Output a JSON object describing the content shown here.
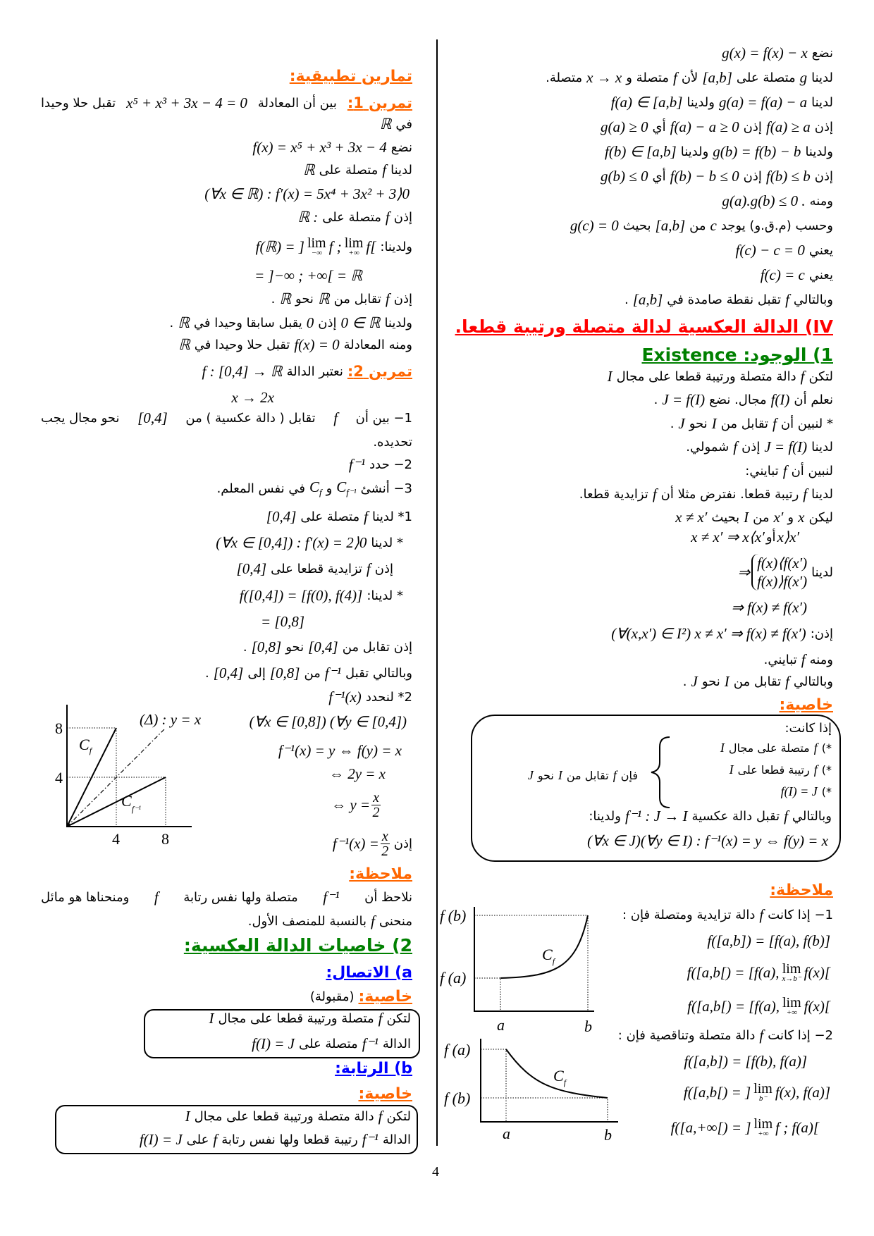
{
  "colors": {
    "orange": "#ff6600",
    "red": "#ff0000",
    "green": "#008000",
    "blue": "#0000ff"
  },
  "page_number": "4",
  "right_col": [
    [
      {
        "ar": "نضع"
      },
      {
        "m": "g(x) = f(x) − x"
      }
    ],
    [
      {
        "ar": "لدينا"
      },
      {
        "m": "g"
      },
      {
        "ar": "متصلة على"
      },
      {
        "m": "[a,b]"
      },
      {
        "ar": "لأن"
      },
      {
        "m": "f"
      },
      {
        "ar": "متصلة و"
      },
      {
        "m": "x → x"
      },
      {
        "ar": "متصلة."
      }
    ],
    [
      {
        "ar": "لدينا"
      },
      {
        "m": "g(a) = f(a) − a"
      },
      {
        "ar": "ولدينا"
      },
      {
        "m": "f(a) ∈ [a,b]"
      }
    ],
    [
      {
        "ar": "إذن"
      },
      {
        "m": "f(a) ≥ a"
      },
      {
        "ar": "إذن"
      },
      {
        "m": "f(a) − a ≥ 0"
      },
      {
        "ar": "أي"
      },
      {
        "m": "g(a) ≥ 0"
      }
    ],
    [
      {
        "ar": "ولدينا"
      },
      {
        "m": "g(b) = f(b) − b"
      },
      {
        "ar": "ولدينا"
      },
      {
        "m": "f(b) ∈ [a,b]"
      }
    ],
    [
      {
        "ar": "إذن"
      },
      {
        "m": "f(b) ≤ b"
      },
      {
        "ar": "إذن"
      },
      {
        "m": "f(b) − b ≤ 0"
      },
      {
        "ar": "أي"
      },
      {
        "m": "g(b) ≤ 0"
      }
    ],
    [
      {
        "ar": "ومنه"
      },
      {
        "m": "g(a).g(b) ≤ 0 ."
      }
    ],
    [
      {
        "ar": "وحسب (م.ق.و) يوجد"
      },
      {
        "m": "c"
      },
      {
        "ar": "من"
      },
      {
        "m": "[a,b]"
      },
      {
        "ar": "بحيث"
      },
      {
        "m": "g(c) = 0"
      }
    ],
    [
      {
        "ar": "يعني"
      },
      {
        "m": "f(c) − c = 0"
      }
    ],
    [
      {
        "ar": "يعني"
      },
      {
        "m": "f(c) = c"
      }
    ],
    [
      {
        "ar": "وبالتالي"
      },
      {
        "m": "f"
      },
      {
        "ar": "تقبل نقطة صامدة في"
      },
      {
        "m": "[a,b]"
      },
      {
        "ar": "."
      }
    ],
    [
      {
        "h": "IV) الدالة العكسية لدالة متصلة ورتيبة قطعا.",
        "color": "red"
      }
    ],
    [
      {
        "h": "1) الوجود: Existence",
        "color": "green"
      }
    ],
    [
      {
        "ar": "لتكن"
      },
      {
        "m": "f"
      },
      {
        "ar": "دالة متصلة ورتيبة قطعا على مجال"
      },
      {
        "m": "I"
      }
    ],
    [
      {
        "ar": "نعلم أن"
      },
      {
        "m": "f(I)"
      },
      {
        "ar": "مجال. نضع"
      },
      {
        "m": "J = f(I)"
      },
      {
        "ar": "."
      }
    ],
    [
      {
        "ar": "* لنبين أن"
      },
      {
        "m": "f"
      },
      {
        "ar": "تقابل من"
      },
      {
        "m": "I"
      },
      {
        "ar": "نحو"
      },
      {
        "m": "J"
      },
      {
        "ar": "."
      }
    ],
    [
      {
        "ar": "لدينا"
      },
      {
        "m": "J = f(I)"
      },
      {
        "ar": "إذن"
      },
      {
        "m": "f"
      },
      {
        "ar": "شمولي."
      }
    ],
    [
      {
        "ar": "لنبين أن"
      },
      {
        "m": "f"
      },
      {
        "ar": "تبايني:"
      }
    ],
    [
      {
        "ar": "لدينا"
      },
      {
        "m": "f"
      },
      {
        "ar": "رتيبة قطعا. نفترض مثلا أن"
      },
      {
        "m": "f"
      },
      {
        "ar": "تزايدية قطعا."
      }
    ],
    [
      {
        "ar": "ليكن"
      },
      {
        "m": "x"
      },
      {
        "ar": "و"
      },
      {
        "m": "x′"
      },
      {
        "ar": "من"
      },
      {
        "m": "I"
      },
      {
        "ar": "بحيث"
      },
      {
        "m": "x ≠ x′"
      }
    ],
    [
      {
        "grp": [
          {
            "m": "x ≠ x′ ⇒ x⟨x′"
          },
          {
            "ar": " أو "
          },
          {
            "m": "x⟩x′"
          }
        ]
      }
    ],
    [
      {
        "ar": "لدينا"
      },
      {
        "grp": [
          {
            "m": "⇒"
          },
          {
            "sys": [
              "f(x)⟨f(x′)",
              "f(x)⟩f(x′)"
            ]
          }
        ]
      }
    ],
    [
      {
        "m": "⇒ f(x) ≠ f(x′)"
      }
    ],
    [
      {
        "ar": "إذن:"
      },
      {
        "m": "(∀(x,x′) ∈ I²) x ≠ x′ ⇒ f(x) ≠ f(x′)"
      }
    ],
    [
      {
        "ar": "ومنه"
      },
      {
        "m": "f"
      },
      {
        "ar": "تبايني."
      }
    ],
    [
      {
        "ar": "وبالتالي"
      },
      {
        "m": "f"
      },
      {
        "ar": "تقابل من"
      },
      {
        "m": "I"
      },
      {
        "ar": "نحو"
      },
      {
        "m": "J"
      },
      {
        "ar": "."
      }
    ],
    [
      {
        "h": "خاصية:",
        "color": "orange"
      }
    ],
    [
      {
        "h": "ملاحظة:",
        "color": "orange"
      }
    ],
    [
      {
        "ar": "1− إذا كانت"
      },
      {
        "m": "f"
      },
      {
        "ar": "دالة تزايدية ومتصلة فإن :"
      }
    ],
    [
      {
        "m": "f([a,b]) = [f(a), f(b)]"
      }
    ],
    [
      {
        "grp": [
          {
            "m": "f([a,b[) = [f(a),"
          },
          {
            "lim": "lim",
            "sub": "x→b⁻"
          },
          {
            "m": "f(x)["
          }
        ]
      }
    ],
    [
      {
        "grp": [
          {
            "m": "f([a,b[) = [f(a),"
          },
          {
            "lim": "lim",
            "sub": "+∞"
          },
          {
            "m": "f(x)["
          }
        ]
      }
    ],
    [
      {
        "ar": "2− إذا كانت"
      },
      {
        "m": "f"
      },
      {
        "ar": "دالة متصلة وتناقصية فإن :"
      }
    ],
    [
      {
        "m": "f([a,b]) = [f(b), f(a)]"
      }
    ],
    [
      {
        "grp": [
          {
            "m": "f([a,b[) = ]"
          },
          {
            "lim": "lim",
            "sub": "b⁻"
          },
          {
            "m": "f(x), f(a)]"
          }
        ]
      }
    ],
    [
      {
        "grp": [
          {
            "m": "f([a,+∞[) = ]"
          },
          {
            "lim": "lim",
            "sub": "+∞"
          },
          {
            "m": "f ; f(a)["
          }
        ]
      }
    ]
  ],
  "right_box": [
    [
      {
        "ar": "إذا كانت:"
      }
    ],
    [
      {
        "ar": "*)"
      },
      {
        "m": "f"
      },
      {
        "ar": "متصلة على مجال"
      },
      {
        "m": "I"
      }
    ],
    [
      {
        "ar": "*)"
      },
      {
        "m": "f"
      },
      {
        "ar": "رتيبة قطعا على"
      },
      {
        "m": "I"
      }
    ],
    [
      {
        "ar": "*)"
      },
      {
        "m": "f(I) = J"
      }
    ],
    [
      {
        "ar": "فإن"
      },
      {
        "m": "f"
      },
      {
        "ar": "تقابل من"
      },
      {
        "m": "I"
      },
      {
        "ar": "نحو"
      },
      {
        "m": "J"
      }
    ],
    [
      {
        "ar": "وبالتالي"
      },
      {
        "m": "f"
      },
      {
        "ar": "تقبل دالة عكسية"
      },
      {
        "m": "f⁻¹ : J → I"
      },
      {
        "ar": "ولدينا:"
      }
    ],
    [
      {
        "m": "(∀x ∈ J)(∀y ∈ I) : f⁻¹(x) = y ⇔ f(y) = x"
      }
    ]
  ],
  "left_col": [
    [
      {
        "h": "تمارين تطبيقية:",
        "color": "orange"
      }
    ],
    [
      {
        "lab": "تمرين 1:"
      },
      {
        "ar": "بين أن المعادلة"
      },
      {
        "m": "x⁵ + x³ + 3x − 4 = 0"
      },
      {
        "ar": "تقبل حلا وحيدا"
      }
    ],
    [
      {
        "ar": "في"
      },
      {
        "m": "ℝ"
      }
    ],
    [
      {
        "ar": "نضع"
      },
      {
        "m": "f(x) = x⁵ + x³ + 3x − 4"
      }
    ],
    [
      {
        "ar": "لدينا"
      },
      {
        "m": "f"
      },
      {
        "ar": "متصلة على"
      },
      {
        "m": "ℝ"
      }
    ],
    [
      {
        "m": "(∀x ∈ ℝ) : f′(x) = 5x⁴ + 3x² + 3⟩0"
      }
    ],
    [
      {
        "ar": "إذن"
      },
      {
        "m": "f"
      },
      {
        "ar": "متصلة على"
      },
      {
        "m": "ℝ :"
      }
    ],
    [
      {
        "ar": "ولدينا:"
      },
      {
        "grp": [
          {
            "m": "f(ℝ) = ]"
          },
          {
            "lim": "lim",
            "sub": "−∞"
          },
          {
            "m": "f ;"
          },
          {
            "lim": "lim",
            "sub": "+∞"
          },
          {
            "m": "f["
          }
        ]
      }
    ],
    [
      {
        "m": "= ]−∞ ; +∞[ = ℝ"
      }
    ],
    [
      {
        "ar": "إذن"
      },
      {
        "m": "f"
      },
      {
        "ar": "تقابل من"
      },
      {
        "m": "ℝ"
      },
      {
        "ar": "نحو"
      },
      {
        "m": "ℝ"
      },
      {
        "ar": "."
      }
    ],
    [
      {
        "ar": "ولدينا"
      },
      {
        "m": "0 ∈ ℝ"
      },
      {
        "ar": "إذن"
      },
      {
        "m": "0"
      },
      {
        "ar": "يقبل سابقا وحيدا في"
      },
      {
        "m": "ℝ"
      },
      {
        "ar": "."
      }
    ],
    [
      {
        "ar": "ومنه المعادلة"
      },
      {
        "m": "f(x) = 0"
      },
      {
        "ar": "تقبل حلا وحيدا في"
      },
      {
        "m": "ℝ"
      }
    ],
    [
      {
        "lab": "تمرين 2:"
      },
      {
        "ar": "نعتبر الدالة"
      },
      {
        "m": "f : [0,4] → ℝ"
      }
    ],
    [
      {
        "m": "x → 2x"
      }
    ],
    [
      {
        "ar": "1− بين أن"
      },
      {
        "m": "f"
      },
      {
        "ar": "تقابل ( دالة عكسية ) من"
      },
      {
        "m": "[0,4]"
      },
      {
        "ar": "نحو مجال يجب"
      }
    ],
    [
      {
        "ar": "تحديده."
      }
    ],
    [
      {
        "ar": "2− حدد"
      },
      {
        "m": "f⁻¹"
      }
    ],
    [
      {
        "ar": "3− أنشئ"
      },
      {
        "m": "C",
        "sub": "f⁻¹"
      },
      {
        "ar": "و"
      },
      {
        "m": "C",
        "sub": "f"
      },
      {
        "ar": "في نفس المعلم."
      }
    ],
    [
      {
        "ar": "1* لدينا"
      },
      {
        "m": "f"
      },
      {
        "ar": "متصلة على"
      },
      {
        "m": "[0,4]"
      }
    ],
    [
      {
        "ar": "* لدينا"
      },
      {
        "m": "(∀x ∈ [0,4]) : f′(x) = 2⟩0"
      }
    ],
    [
      {
        "ar": "إذن"
      },
      {
        "m": "f"
      },
      {
        "ar": "تزايدية قطعا على"
      },
      {
        "m": "[0,4]"
      }
    ],
    [
      {
        "ar": "* لدينا:"
      },
      {
        "m": "f([0,4]) = [f(0), f(4)]"
      }
    ],
    [
      {
        "m": "= [0,8]"
      }
    ],
    [
      {
        "ar": "إذن تقابل من"
      },
      {
        "m": "[0,4]"
      },
      {
        "ar": "نحو"
      },
      {
        "m": "[0,8]"
      },
      {
        "ar": "."
      }
    ],
    [
      {
        "ar": "وبالتالي تقبل"
      },
      {
        "m": "f⁻¹"
      },
      {
        "ar": "من"
      },
      {
        "m": "[0,8]"
      },
      {
        "ar": "إلى"
      },
      {
        "m": "[0,4]"
      },
      {
        "ar": "."
      }
    ],
    [
      {
        "ar": "2* لنحدد"
      },
      {
        "m": "f⁻¹(x)"
      }
    ],
    [
      {
        "m": "(∀x ∈ [0,8]) (∀y ∈ [0,4])"
      }
    ],
    [
      {
        "m": "f⁻¹(x) = y ⇔ f(y) = x"
      }
    ],
    [
      {
        "m": "⇔ 2y = x"
      }
    ],
    [
      {
        "grp": [
          {
            "m": "⇔ y ="
          },
          {
            "frac": [
              "x",
              "2"
            ]
          }
        ]
      }
    ],
    [
      {
        "ar": "إذن"
      },
      {
        "grp": [
          {
            "m": "f⁻¹(x) ="
          },
          {
            "frac": [
              "x",
              "2"
            ]
          }
        ]
      }
    ],
    [
      {
        "h": "ملاحظة:",
        "color": "orange"
      }
    ],
    [
      {
        "ar": "نلاحظ أن"
      },
      {
        "m": "f⁻¹"
      },
      {
        "ar": "متصلة ولها نفس رتابة"
      },
      {
        "m": "f"
      },
      {
        "ar": "ومنحناها هو مائل"
      }
    ],
    [
      {
        "ar": "منحنى"
      },
      {
        "m": "f"
      },
      {
        "ar": "بالنسبة للمنصف الأول."
      }
    ],
    [
      {
        "h": "2) خاصيات الدالة العكسية:",
        "color": "green"
      }
    ],
    [
      {
        "h": "a) الاتصال:",
        "color": "blue"
      }
    ],
    [
      {
        "h": "خاصية:",
        "color": "orange"
      },
      {
        "ar": "(مقبولة)"
      }
    ],
    [
      {
        "h": "b) الرتابة:",
        "color": "blue"
      }
    ],
    [
      {
        "h": "خاصية:",
        "color": "orange"
      }
    ]
  ],
  "left_box_1": [
    [
      {
        "ar": "لتكن"
      },
      {
        "m": "f"
      },
      {
        "ar": "متصلة ورتيبة قطعا على مجال"
      },
      {
        "m": "I"
      }
    ],
    [
      {
        "ar": "الدالة"
      },
      {
        "m": "f⁻¹"
      },
      {
        "ar": "متصلة على"
      },
      {
        "m": "f(I) = J"
      }
    ]
  ],
  "left_box_2": [
    [
      {
        "ar": "لتكن"
      },
      {
        "m": "f"
      },
      {
        "ar": "دالة متصلة ورتيبة قطعا على مجال"
      },
      {
        "m": "I"
      }
    ],
    [
      {
        "ar": "الدالة"
      },
      {
        "m": "f⁻¹"
      },
      {
        "ar": "رتيبة قطعا ولها نفس رتابة"
      },
      {
        "m": "f"
      },
      {
        "ar": "على"
      },
      {
        "m": "f(I) = J"
      }
    ]
  ],
  "figure_inverse": {
    "y_ticks": [
      "8",
      "4"
    ],
    "x_ticks": [
      "4",
      "8"
    ],
    "delta_label": "(Δ) : y = x",
    "cf": "C",
    "cf_sub": "f",
    "cfinv": "C",
    "cfinv_sub": "f⁻¹"
  },
  "figure_increasing": {
    "fb": "f (b)",
    "fa": "f (a)",
    "a": "a",
    "b": "b",
    "cf": "C",
    "cf_sub": "f"
  },
  "figure_decreasing": {
    "fa": "f (a)",
    "fb": "f (b)",
    "a": "a",
    "b": "b",
    "cf": "C",
    "cf_sub": "f"
  }
}
